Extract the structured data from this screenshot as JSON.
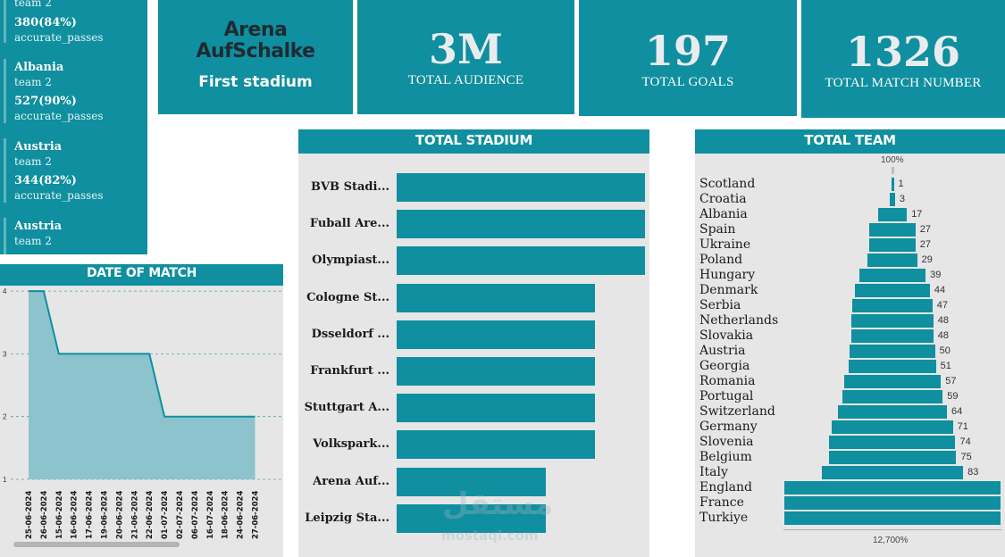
{
  "cards": [
    {
      "name": "",
      "team": "team 2",
      "value": "380(84%)",
      "metric": "accurate_passes"
    },
    {
      "name": "Albania",
      "team": "team 2",
      "value": "527(90%)",
      "metric": "accurate_passes"
    },
    {
      "name": "Austria",
      "team": "team 2",
      "value": "344(82%)",
      "metric": "accurate_passes"
    },
    {
      "name": "Austria",
      "team": "team 2",
      "value": "",
      "metric": ""
    }
  ],
  "kpis": {
    "stadium_name_line1": "Arena",
    "stadium_name_line2": "AufSchalke",
    "stadium_sub": "First stadium",
    "audience_value": "3M",
    "audience_label": "TOTAL AUDIENCE",
    "goals_value": "197",
    "goals_label": "TOTAL GOALS",
    "matches_value": "1326",
    "matches_label": "TOTAL MATCH NUMBER"
  },
  "stadium_panel": {
    "title": "TOTAL STADIUM"
  },
  "team_panel": {
    "title": "TOTAL TEAM",
    "top_label": "100%",
    "bottom_label": "12,700%"
  },
  "date_panel": {
    "title": "DATE OF MATCH"
  },
  "watermark": {
    "line1": "مستقل",
    "line2": "mostaql.com"
  },
  "colors": {
    "accent": "#0f8f9f",
    "area_fill": "#8cc3cc",
    "panel_bg": "#e6e6e6"
  },
  "chart_data": [
    {
      "type": "bar",
      "title": "TOTAL STADIUM",
      "orientation": "horizontal",
      "categories": [
        "BVB Stadi...",
        "Fuball Are...",
        "Olympiast...",
        "Cologne St...",
        "Dsseldorf ...",
        "Frankfurt ...",
        "Stuttgart A...",
        "Volkspark...",
        "Arena Auf...",
        "Leipzig Sta..."
      ],
      "values": [
        5,
        5,
        5,
        4,
        4,
        4,
        4,
        4,
        3,
        3
      ],
      "xlim": [
        0,
        5
      ]
    },
    {
      "type": "bar",
      "title": "TOTAL TEAM",
      "orientation": "horizontal-centered",
      "categories": [
        "Scotland",
        "Croatia",
        "Albania",
        "Spain",
        "Ukraine",
        "Poland",
        "Hungary",
        "Denmark",
        "Serbia",
        "Netherlands",
        "Slovakia",
        "Austria",
        "Georgia",
        "Romania",
        "Portugal",
        "Switzerland",
        "Germany",
        "Slovenia",
        "Belgium",
        "Italy",
        "England",
        "France",
        "Turkiye"
      ],
      "values": [
        1,
        3,
        17,
        27,
        27,
        29,
        39,
        44,
        47,
        48,
        48,
        50,
        51,
        57,
        59,
        64,
        71,
        74,
        75,
        83,
        127,
        127,
        127
      ],
      "value_labels": [
        "1",
        "3",
        "17",
        "27",
        "27",
        "29",
        "39",
        "44",
        "47",
        "48",
        "48",
        "50",
        "51",
        "57",
        "59",
        "64",
        "71",
        "74",
        "75",
        "83",
        "",
        "",
        ""
      ]
    },
    {
      "type": "area",
      "title": "DATE OF MATCH",
      "categories": [
        "25-06-2024",
        "26-06-2024",
        "15-06-2024",
        "16-06-2024",
        "17-06-2024",
        "19-06-2024",
        "20-06-2024",
        "21-06-2024",
        "22-06-2024",
        "01-07-2024",
        "02-07-2024",
        "06-07-2024",
        "16-07-2024",
        "18-06-2024",
        "24-06-2024",
        "27-06-2024"
      ],
      "values": [
        4,
        4,
        3,
        3,
        3,
        3,
        3,
        3,
        3,
        2,
        2,
        2,
        2,
        2,
        2,
        2
      ],
      "ylim": [
        1,
        4
      ],
      "yticks": [
        "1",
        "2",
        "3",
        "4"
      ],
      "grid": true
    }
  ]
}
